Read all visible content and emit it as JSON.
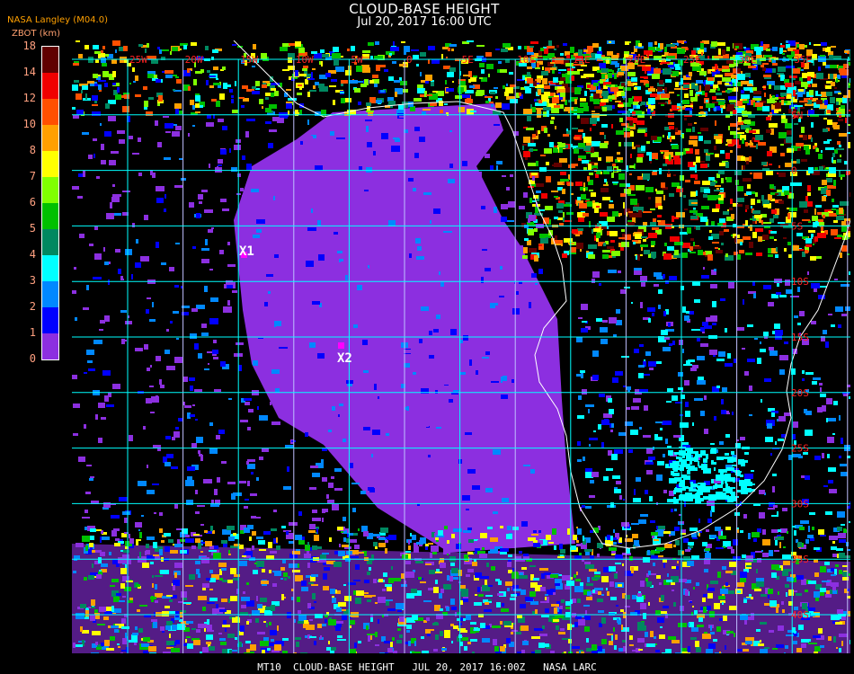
{
  "header": {
    "title": "CLOUD-BASE HEIGHT",
    "subtitle": "Jul 20, 2017 16:00 UTC",
    "source": "NASA Langley (M04.0)",
    "units": "ZBOT (km)"
  },
  "legend": {
    "tick_labels": [
      "18",
      "14",
      "12",
      "10",
      "8",
      "7",
      "6",
      "5",
      "4",
      "3",
      "2",
      "1",
      "0"
    ],
    "colors": [
      "#600000",
      "#f00000",
      "#ff5000",
      "#ffa000",
      "#ffff00",
      "#80ff00",
      "#00c000",
      "#008860",
      "#00ffff",
      "#0088ff",
      "#0000ff",
      "#8c2fe0"
    ]
  },
  "map": {
    "lon_labels": [
      "25W",
      "20W",
      "15W",
      "10W",
      "5W",
      "0",
      "5E",
      "10E",
      "15E",
      "20E",
      "25E",
      "30E",
      "35E"
    ],
    "lat_labels": [
      "5N",
      "0",
      "5S",
      "10S",
      "15S",
      "20S",
      "25S",
      "30S",
      "35S",
      "40S"
    ],
    "grid_color": "#00ffff",
    "coast_color": "#ffffff",
    "label_color": "#ff2020",
    "markers": [
      {
        "label": "X1",
        "color": "#ff00ff"
      },
      {
        "label": "X2",
        "color": "#ff00ff"
      }
    ]
  },
  "caption": "MT10  CLOUD-BASE HEIGHT   JUL 20, 2017 16:00Z   NASA LARC"
}
